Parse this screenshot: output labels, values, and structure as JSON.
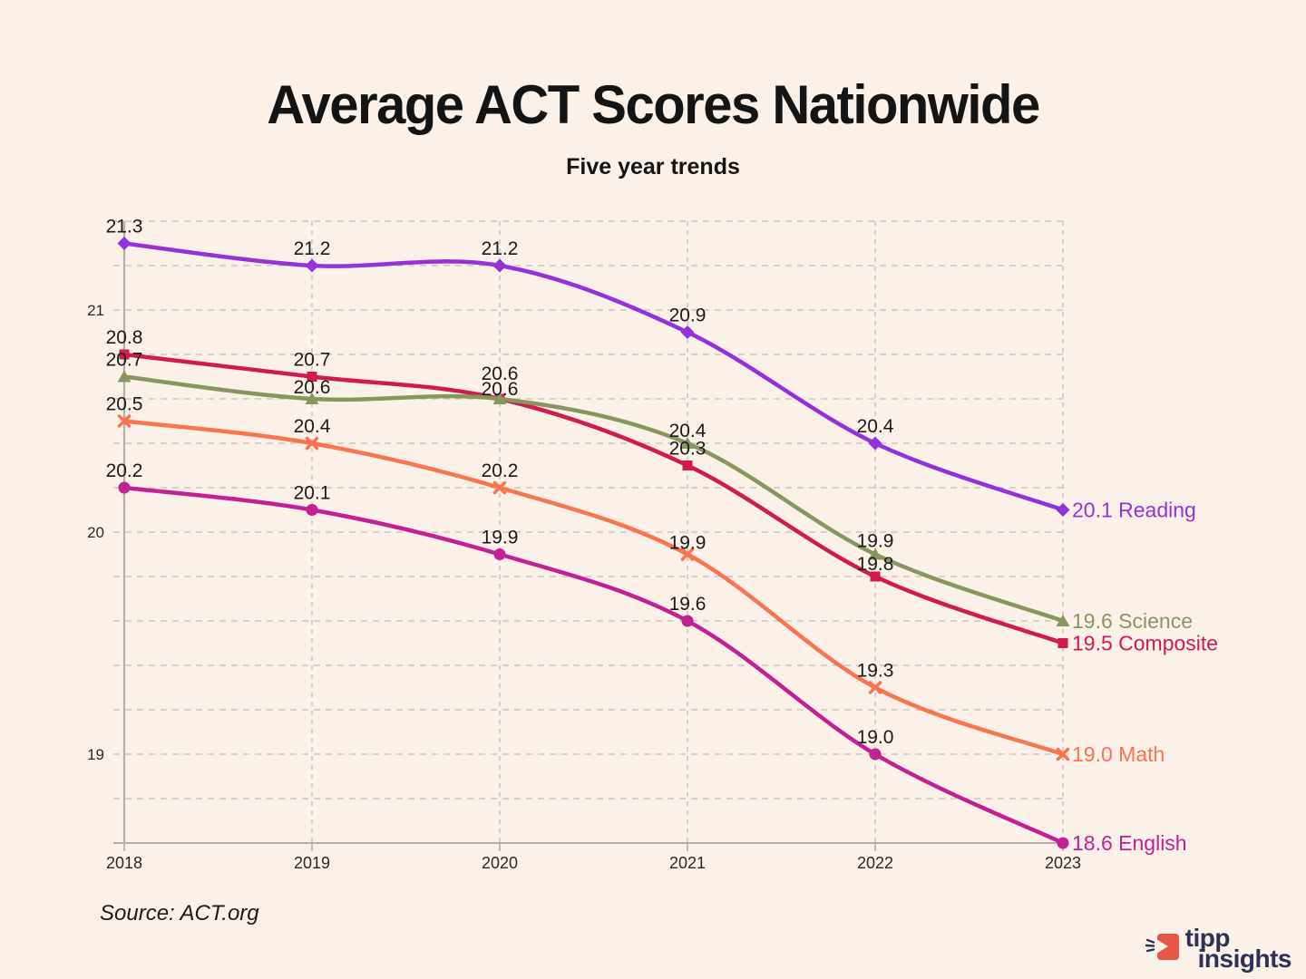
{
  "header": {
    "title": "Average ACT Scores Nationwide",
    "subtitle": "Five year trends"
  },
  "source_note": "Source: ACT.org",
  "logo": {
    "line1": "tipp",
    "line2": "insights",
    "navy": "#2d3156",
    "red": "#e65748"
  },
  "chart_data": {
    "type": "line",
    "title": "Average ACT Scores Nationwide",
    "subtitle": "Five year trends",
    "x": [
      "2018",
      "2019",
      "2020",
      "2021",
      "2022",
      "2023"
    ],
    "series": [
      {
        "name": "Reading",
        "color": "#9531da",
        "marker": "diamond",
        "values": [
          21.3,
          21.2,
          21.2,
          20.9,
          20.4,
          20.1
        ],
        "end_label": "20.1 Reading"
      },
      {
        "name": "Composite",
        "color": "#d11a50",
        "marker": "square",
        "values": [
          20.8,
          20.7,
          20.6,
          20.3,
          19.8,
          19.5
        ],
        "end_label": "19.5 Composite"
      },
      {
        "name": "Science",
        "color": "#87965f",
        "marker": "triangle",
        "values": [
          20.7,
          20.6,
          20.6,
          20.4,
          19.9,
          19.6
        ],
        "end_label": "19.6 Science"
      },
      {
        "name": "Math",
        "color": "#f9744f",
        "marker": "x",
        "values": [
          20.5,
          20.4,
          20.2,
          19.9,
          19.3,
          19.0
        ],
        "end_label": "19.0 Math"
      },
      {
        "name": "English",
        "color": "#c32093",
        "marker": "circle",
        "values": [
          20.2,
          20.1,
          19.9,
          19.6,
          19.0,
          18.6
        ],
        "end_label": "18.6 English"
      }
    ],
    "y_axis": {
      "tick_labels": [
        21,
        20,
        19
      ],
      "min": 18.6,
      "max": 21.4,
      "minor_step": 0.2
    },
    "grid": true,
    "legend_position": "end-of-line-labels"
  }
}
